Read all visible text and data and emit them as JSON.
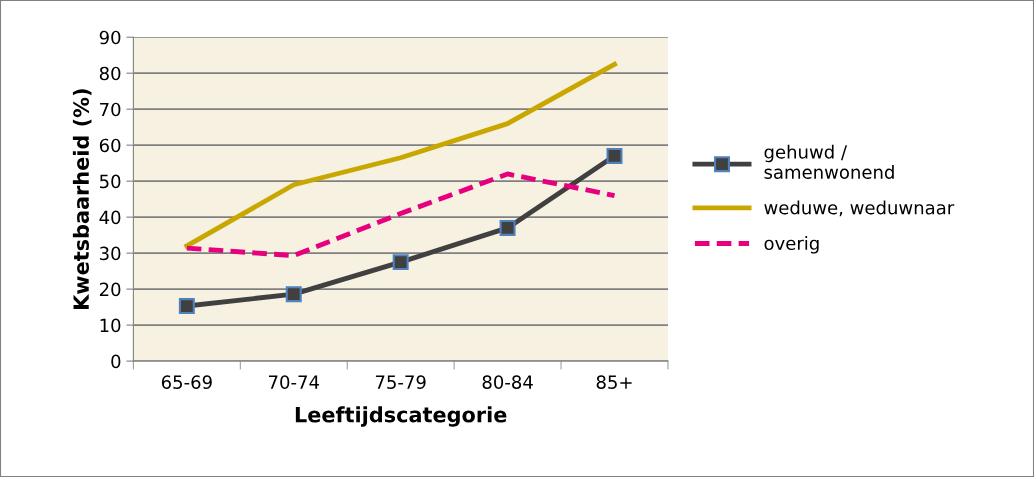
{
  "chart_data": {
    "type": "line",
    "xlabel": "Leeftijdscategorie",
    "ylabel": "Kwetsbaarheid (%)",
    "categories": [
      "65-69",
      "70-74",
      "75-79",
      "80-84",
      "85+"
    ],
    "series": [
      {
        "name": "gehuwd /\nsamenwonend",
        "color": "#404040",
        "values": [
          15.3,
          18.6,
          27.5,
          37,
          57
        ],
        "marker": "square",
        "line_style": "solid"
      },
      {
        "name": "weduwe, weduwnaar",
        "color": "#c8a800",
        "values": [
          32,
          49,
          56.5,
          66,
          82.5
        ],
        "marker": "none",
        "line_style": "solid"
      },
      {
        "name": "overig",
        "color": "#e6007e",
        "values": [
          31.4,
          29.3,
          41,
          52,
          46
        ],
        "marker": "none",
        "line_style": "dashed"
      }
    ],
    "ylim": [
      0,
      90
    ],
    "yticks": [
      0,
      10,
      20,
      30,
      40,
      50,
      60,
      70,
      80,
      90
    ],
    "grid": "y",
    "legend": "right"
  }
}
